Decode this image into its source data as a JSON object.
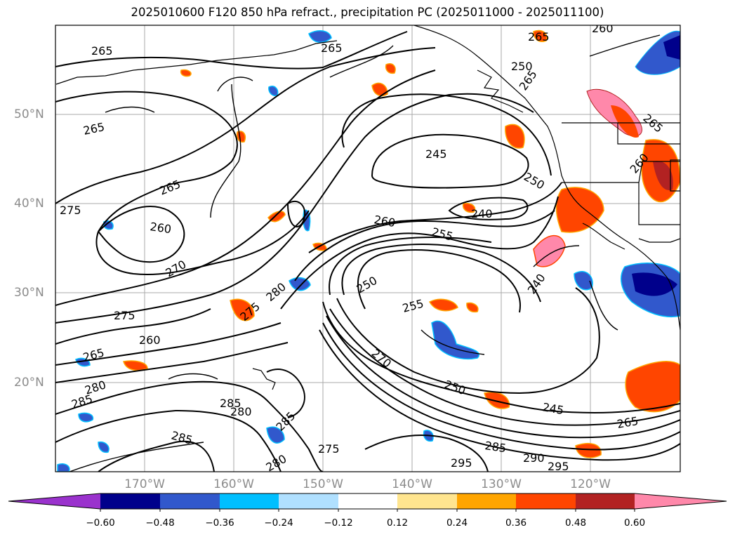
{
  "title": "2025010600 F120 850 hPa refract., precipitation PC (2025011000 - 2025011100)",
  "axes": {
    "lon_labels": [
      "170°W",
      "160°W",
      "150°W",
      "140°W",
      "130°W",
      "120°W"
    ],
    "lat_labels": [
      "50°N",
      "40°N",
      "30°N",
      "20°N"
    ],
    "lon_range": [
      -180,
      -110
    ],
    "lat_range": [
      10,
      60
    ]
  },
  "contours": {
    "color": "#000000",
    "labels": [
      "265",
      "265",
      "265",
      "265",
      "265",
      "260",
      "275",
      "260",
      "270",
      "280",
      "275",
      "275",
      "260",
      "265",
      "280",
      "285",
      "285",
      "280",
      "285",
      "285",
      "275",
      "280",
      "260",
      "245",
      "240",
      "250",
      "255",
      "250",
      "255",
      "240",
      "270",
      "250",
      "245",
      "265",
      "285",
      "290",
      "295",
      "295",
      "265",
      "260",
      "265",
      "250"
    ]
  },
  "colorbar": {
    "colors": [
      "#9a32cd",
      "#00008b",
      "#3158cc",
      "#00bfff",
      "#b0e0ff",
      "#ffffff",
      "#ffe58f",
      "#ffa500",
      "#ff4500",
      "#b22222",
      "#ff88aa"
    ],
    "ticks": [
      "−0.60",
      "−0.48",
      "−0.36",
      "−0.24",
      "−0.12",
      "0.12",
      "0.24",
      "0.36",
      "0.48",
      "0.60"
    ]
  }
}
